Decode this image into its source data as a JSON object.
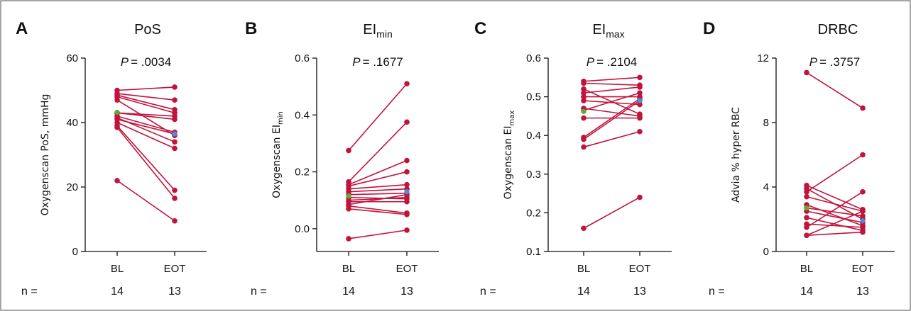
{
  "panels_meta": {
    "n_label": "n ="
  },
  "colors": {
    "subject_line": "#c0143c",
    "mean_bl": "#5aab3c",
    "mean_eot": "#4a8fd6",
    "frame": "#6a6a6a"
  },
  "chart_data": [
    {
      "type": "line",
      "panel": "A",
      "title": "PoS",
      "title_sub": "",
      "ylabel": "Oxygenscan PoS, mmHg",
      "ylabel_sub": "",
      "ylabel_tail": "",
      "p_prefix": "P",
      "p_value": "= .0034",
      "categories": [
        "BL",
        "EOT"
      ],
      "n": [
        "14",
        "13"
      ],
      "ylim": [
        0,
        60
      ],
      "yticks": [
        0,
        20,
        40,
        60
      ],
      "ytick_labels": [
        "0",
        "20",
        "40",
        "60"
      ],
      "pairs": [
        [
          50,
          51
        ],
        [
          49,
          47
        ],
        [
          48.5,
          44
        ],
        [
          48,
          43
        ],
        [
          47,
          36
        ],
        [
          43,
          42
        ],
        [
          43,
          41
        ],
        [
          42,
          37
        ],
        [
          41.5,
          34
        ],
        [
          41,
          36.5
        ],
        [
          40,
          32
        ],
        [
          39,
          19
        ],
        [
          38.5,
          16.5
        ],
        [
          22,
          9.5
        ]
      ],
      "mean": [
        43.2,
        36.5
      ]
    },
    {
      "type": "line",
      "panel": "B",
      "title": "EI",
      "title_sub": "min",
      "ylabel": "Oxygenscan EI",
      "ylabel_sub": "min",
      "ylabel_tail": "",
      "p_prefix": "P",
      "p_value": "= .1677",
      "categories": [
        "BL",
        "EOT"
      ],
      "n": [
        "14",
        "13"
      ],
      "ylim": [
        -0.08,
        0.6
      ],
      "yticks": [
        0.0,
        0.2,
        0.4,
        0.6
      ],
      "ytick_labels": [
        "0.0",
        "0.2",
        "0.4",
        "0.6"
      ],
      "pairs": [
        [
          0.275,
          0.51
        ],
        [
          0.165,
          0.375
        ],
        [
          0.155,
          0.24
        ],
        [
          0.15,
          0.2
        ],
        [
          0.14,
          0.155
        ],
        [
          0.13,
          0.14
        ],
        [
          0.12,
          0.125
        ],
        [
          0.11,
          0.105
        ],
        [
          0.1,
          0.11
        ],
        [
          0.095,
          0.095
        ],
        [
          0.085,
          0.12
        ],
        [
          0.08,
          0.055
        ],
        [
          0.07,
          0.05
        ],
        [
          -0.035,
          -0.005
        ]
      ],
      "mean": [
        0.115,
        0.13
      ]
    },
    {
      "type": "line",
      "panel": "C",
      "title": "EI",
      "title_sub": "max",
      "ylabel": "Oxygenscan EI",
      "ylabel_sub": "max",
      "ylabel_tail": "",
      "p_prefix": "P",
      "p_value": "= .2104",
      "categories": [
        "BL",
        "EOT"
      ],
      "n": [
        "14",
        "13"
      ],
      "ylim": [
        0.1,
        0.6
      ],
      "yticks": [
        0.1,
        0.2,
        0.3,
        0.4,
        0.5,
        0.6
      ],
      "ytick_labels": [
        "0.1",
        "0.2",
        "0.3",
        "0.4",
        "0.5",
        "0.6"
      ],
      "pairs": [
        [
          0.54,
          0.55
        ],
        [
          0.535,
          0.53
        ],
        [
          0.52,
          0.455
        ],
        [
          0.51,
          0.525
        ],
        [
          0.5,
          0.5
        ],
        [
          0.49,
          0.48
        ],
        [
          0.47,
          0.45
        ],
        [
          0.465,
          0.51
        ],
        [
          0.445,
          0.445
        ],
        [
          0.395,
          0.495
        ],
        [
          0.39,
          0.49
        ],
        [
          0.37,
          0.41
        ],
        [
          0.16,
          0.24
        ]
      ],
      "mean": [
        0.462,
        0.49
      ]
    },
    {
      "type": "line",
      "panel": "D",
      "title": "DRBC",
      "title_sub": "",
      "ylabel": "Advia % hyper RBC",
      "ylabel_sub": "",
      "ylabel_tail": "",
      "p_prefix": "P",
      "p_value": "= .3757",
      "categories": [
        "BL",
        "EOT"
      ],
      "n": [
        "14",
        "13"
      ],
      "ylim": [
        0,
        12
      ],
      "yticks": [
        0,
        4,
        8,
        12
      ],
      "ytick_labels": [
        "0",
        "4",
        "8",
        "12"
      ],
      "pairs": [
        [
          11.1,
          8.9
        ],
        [
          4.1,
          2.6
        ],
        [
          3.9,
          2.0
        ],
        [
          3.7,
          6.0
        ],
        [
          3.4,
          2.5
        ],
        [
          2.9,
          1.6
        ],
        [
          2.7,
          2.2
        ],
        [
          2.5,
          1.8
        ],
        [
          2.1,
          1.3
        ],
        [
          1.7,
          1.5
        ],
        [
          1.5,
          3.7
        ],
        [
          1.0,
          1.2
        ],
        [
          1.0,
          2.5
        ]
      ],
      "mean": [
        2.7,
        1.9
      ]
    }
  ]
}
